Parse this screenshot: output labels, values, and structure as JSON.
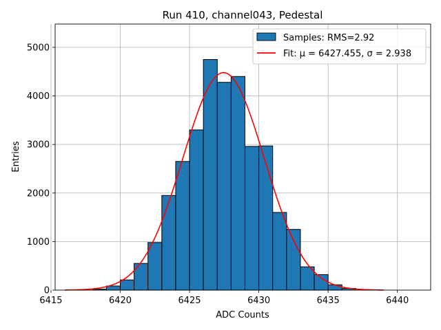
{
  "chart_data": {
    "type": "bar",
    "title": "Run 410, channel043, Pedestal",
    "xlabel": "ADC Counts",
    "ylabel": "Entries",
    "xlim": [
      6415.3,
      6442.4
    ],
    "ylim": [
      0,
      5480
    ],
    "xticks": [
      6415,
      6420,
      6425,
      6430,
      6435,
      6440
    ],
    "yticks": [
      0,
      1000,
      2000,
      3000,
      4000,
      5000
    ],
    "grid": true,
    "legend_position": "top-right",
    "bar_color": "#1f77b4",
    "fit_color": "#ff0000",
    "bin_width": 1,
    "bins": [
      {
        "x0": 6418,
        "value": 20
      },
      {
        "x0": 6419,
        "value": 85
      },
      {
        "x0": 6420,
        "value": 210
      },
      {
        "x0": 6421,
        "value": 550
      },
      {
        "x0": 6422,
        "value": 980
      },
      {
        "x0": 6423,
        "value": 1950
      },
      {
        "x0": 6424,
        "value": 2650
      },
      {
        "x0": 6425,
        "value": 3300
      },
      {
        "x0": 6426,
        "value": 4750
      },
      {
        "x0": 6427,
        "value": 4280
      },
      {
        "x0": 6428,
        "value": 4400
      },
      {
        "x0": 6429,
        "value": 2960
      },
      {
        "x0": 6430,
        "value": 2970
      },
      {
        "x0": 6431,
        "value": 1600
      },
      {
        "x0": 6432,
        "value": 1250
      },
      {
        "x0": 6433,
        "value": 480
      },
      {
        "x0": 6434,
        "value": 320
      },
      {
        "x0": 6435,
        "value": 110
      },
      {
        "x0": 6436,
        "value": 35
      }
    ],
    "fit": {
      "mu": 6427.455,
      "sigma": 2.938,
      "amplitude": 4480,
      "x_range": [
        6416,
        6439
      ]
    },
    "series": [
      {
        "name": "Samples: RMS=2.92",
        "kind": "histogram"
      },
      {
        "name": "Fit: μ = 6427.455, σ = 2.938",
        "kind": "line"
      }
    ]
  }
}
